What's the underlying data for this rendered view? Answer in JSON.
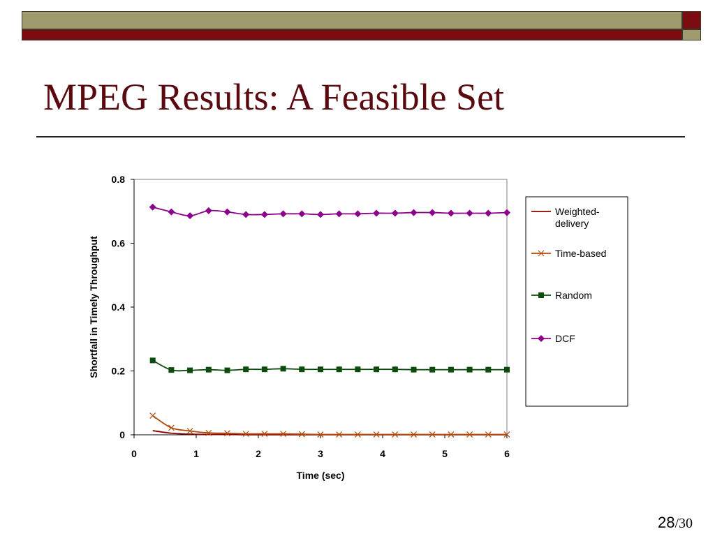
{
  "slide": {
    "title": "MPEG Results: A Feasible Set",
    "page_current": "28",
    "page_total": "/30",
    "colors": {
      "band_olive": "#a09a6e",
      "band_maroon": "#7a0c12",
      "title": "#5a0a0e"
    }
  },
  "chart_data": {
    "type": "line",
    "title": "",
    "xlabel": "Time (sec)",
    "ylabel": "Shortfall in Timely Throughput",
    "xlim": [
      0,
      6
    ],
    "ylim": [
      0,
      0.8
    ],
    "xticks": [
      "0",
      "1",
      "2",
      "3",
      "4",
      "5",
      "6"
    ],
    "yticks": [
      "0",
      "0.2",
      "0.4",
      "0.6",
      "0.8"
    ],
    "grid": false,
    "legend_position": "right",
    "x": [
      0.3,
      0.6,
      0.9,
      1.2,
      1.5,
      1.8,
      2.1,
      2.4,
      2.7,
      3.0,
      3.3,
      3.6,
      3.9,
      4.2,
      4.5,
      4.8,
      5.1,
      5.4,
      5.7,
      6.0
    ],
    "series": [
      {
        "name": "Weighted-delivery",
        "color": "#8b0000",
        "marker": "none",
        "values": [
          0.013,
          0.005,
          0.002,
          0.001,
          0.001,
          0.0,
          0.0,
          0.0,
          0.0,
          0.0,
          0.0,
          0.0,
          0.0,
          0.0,
          0.0,
          0.0,
          0.0,
          0.0,
          0.0,
          0.0
        ]
      },
      {
        "name": "Time-based",
        "color": "#b24a0a",
        "marker": "x",
        "values": [
          0.06,
          0.022,
          0.012,
          0.006,
          0.005,
          0.003,
          0.003,
          0.003,
          0.002,
          0.001,
          0.001,
          0.001,
          0.001,
          0.001,
          0.001,
          0.001,
          0.001,
          0.001,
          0.001,
          0.001
        ]
      },
      {
        "name": "Random",
        "color": "#0d4a0d",
        "marker": "square",
        "values": [
          0.233,
          0.203,
          0.202,
          0.204,
          0.202,
          0.205,
          0.205,
          0.207,
          0.205,
          0.205,
          0.205,
          0.205,
          0.205,
          0.205,
          0.204,
          0.204,
          0.204,
          0.204,
          0.204,
          0.204
        ]
      },
      {
        "name": "DCF",
        "color": "#8b008b",
        "marker": "diamond",
        "values": [
          0.713,
          0.698,
          0.686,
          0.702,
          0.698,
          0.69,
          0.69,
          0.692,
          0.692,
          0.69,
          0.692,
          0.692,
          0.694,
          0.694,
          0.696,
          0.696,
          0.694,
          0.694,
          0.694,
          0.696
        ]
      }
    ]
  }
}
